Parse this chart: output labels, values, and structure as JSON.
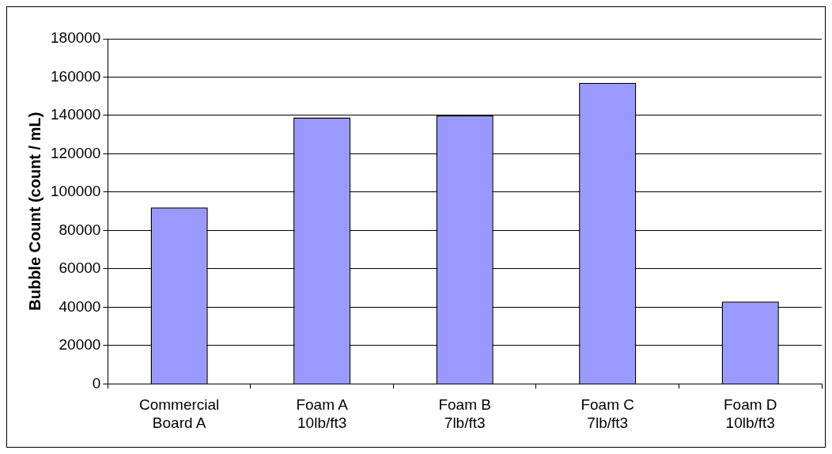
{
  "chart_data": {
    "type": "bar",
    "ylabel": "Bubble Count (count / mL)",
    "categories": [
      "Commercial\nBoard A",
      "Foam A\n10lb/ft3",
      "Foam B\n7lb/ft3",
      "Foam C\n7lb/ft3",
      "Foam D\n10lb/ft3"
    ],
    "values": [
      92000,
      139000,
      140000,
      157000,
      43000
    ],
    "color": "#9999ff",
    "ylim": [
      0,
      180000
    ],
    "yticks": [
      0,
      20000,
      40000,
      60000,
      80000,
      100000,
      120000,
      140000,
      160000,
      180000
    ],
    "grid": "y",
    "legend": false
  }
}
